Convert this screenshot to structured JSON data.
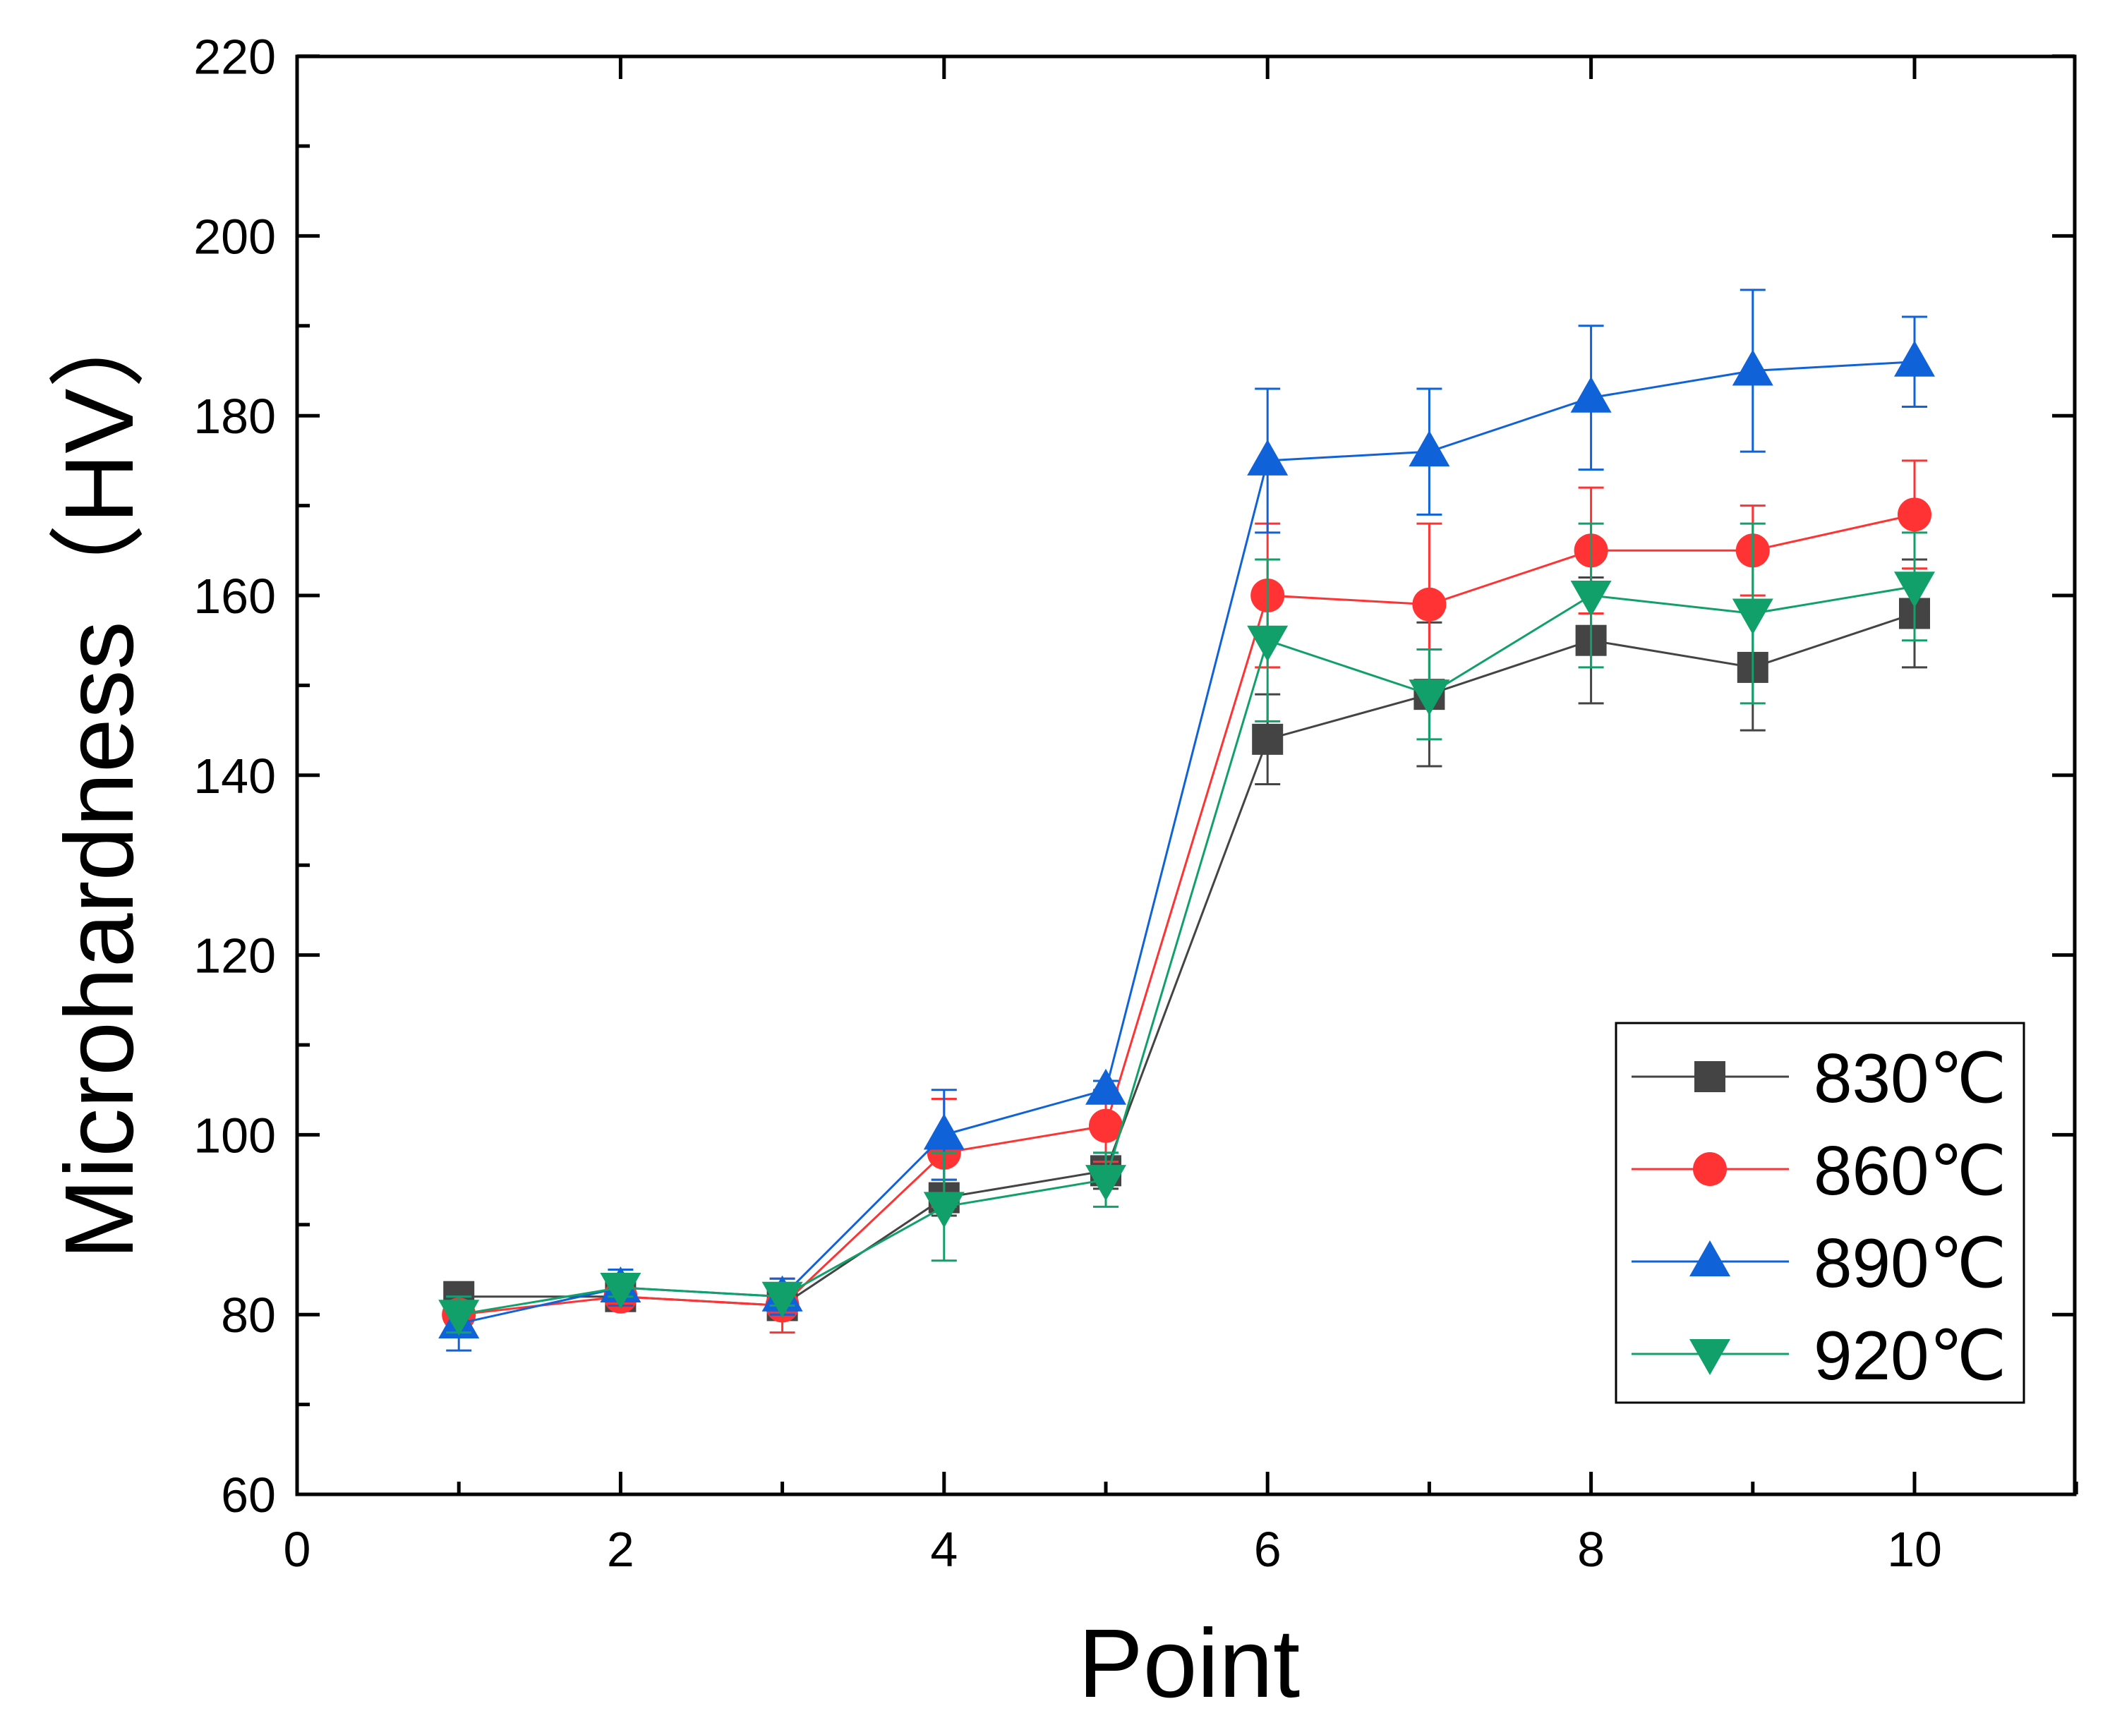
{
  "chart_data": {
    "type": "line",
    "title": "",
    "xlabel": "Point",
    "ylabel": "Microhardness（HV）",
    "xlim": [
      0,
      11
    ],
    "ylim": [
      60,
      220
    ],
    "xticks": [
      0,
      2,
      4,
      6,
      8,
      10
    ],
    "yticks": [
      60,
      80,
      100,
      120,
      140,
      160,
      180,
      200,
      220
    ],
    "grid": false,
    "legend_position": "bottom-right",
    "x": [
      1,
      2,
      3,
      4,
      5,
      6,
      7,
      8,
      9,
      10
    ],
    "series": [
      {
        "name": "830℃",
        "color": "#444444",
        "marker": "square",
        "values": [
          82,
          82,
          81,
          93,
          96,
          144,
          149,
          155,
          152,
          158
        ],
        "errors": [
          1,
          1,
          1,
          2,
          2,
          5,
          8,
          7,
          7,
          6
        ]
      },
      {
        "name": "860℃",
        "color": "#ff3333",
        "marker": "circle",
        "values": [
          80,
          82,
          81,
          98,
          101,
          160,
          159,
          165,
          165,
          169
        ],
        "errors": [
          1,
          1,
          3,
          6,
          4,
          8,
          9,
          7,
          5,
          6
        ]
      },
      {
        "name": "890℃",
        "color": "#0f62d8",
        "marker": "triangle-up",
        "values": [
          79,
          83,
          82,
          100,
          105,
          175,
          176,
          182,
          185,
          186
        ],
        "errors": [
          3,
          2,
          2,
          5,
          1,
          8,
          7,
          8,
          9,
          5
        ]
      },
      {
        "name": "920℃",
        "color": "#12a06a",
        "marker": "triangle-down",
        "values": [
          80,
          83,
          82,
          92,
          95,
          155,
          149,
          160,
          158,
          161
        ],
        "errors": [
          2,
          1,
          1,
          6,
          3,
          9,
          5,
          8,
          10,
          6
        ]
      }
    ]
  }
}
